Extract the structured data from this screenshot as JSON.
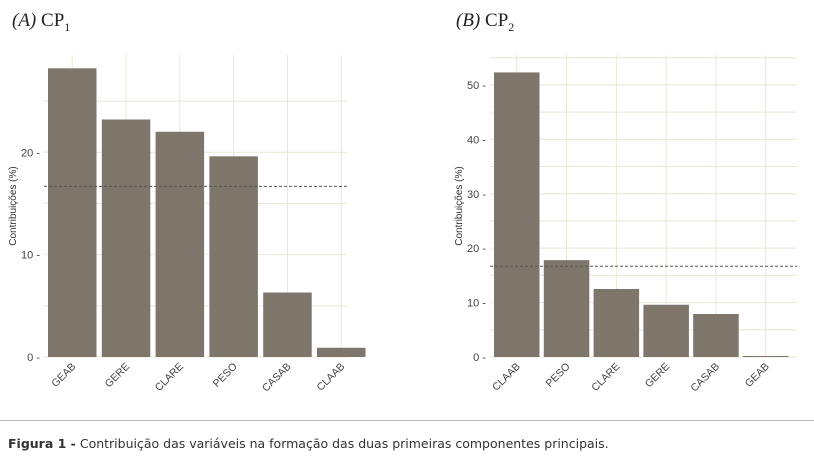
{
  "caption": {
    "label": "Figura 1 -",
    "text": "Contribuição das variáveis na formação das duas primeiras componentes principais."
  },
  "colors": {
    "bar": "#7e756b",
    "grid": "#ebe6d6",
    "refline": "#555555"
  },
  "chart_data": [
    {
      "type": "bar",
      "title_label": "(A)",
      "title_main": "CP",
      "title_sub": "1",
      "ylabel": "Contribuições (%)",
      "categories": [
        "GEAB",
        "GERE",
        "CLARE",
        "PESO",
        "CASAB",
        "CLAAB"
      ],
      "values": [
        28.2,
        23.2,
        22.0,
        19.6,
        6.3,
        0.9
      ],
      "ylim": [
        0,
        29.5
      ],
      "yticks": [
        0,
        10,
        20
      ],
      "ytick_labels": [
        "0 -",
        "10 -",
        "20 -"
      ],
      "reference_line": 16.67,
      "grid": true
    },
    {
      "type": "bar",
      "title_label": "(B)",
      "title_main": "CP",
      "title_sub": "2",
      "ylabel": "Contribuições (%)",
      "categories": [
        "CLAAB",
        "PESO",
        "CLARE",
        "GERE",
        "CASAB",
        "GEAB"
      ],
      "values": [
        52.3,
        17.8,
        12.5,
        9.6,
        7.9,
        0.1
      ],
      "ylim": [
        0,
        55.5
      ],
      "yticks": [
        0,
        10,
        20,
        30,
        40,
        50
      ],
      "ytick_labels": [
        "0 -",
        "10 -",
        "20 -",
        "30 -",
        "40 -",
        "50 -"
      ],
      "reference_line": 16.67,
      "grid": true
    }
  ]
}
